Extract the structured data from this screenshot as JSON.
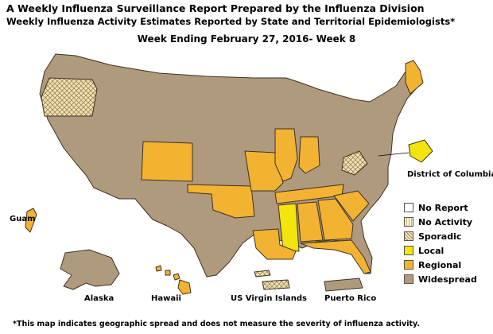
{
  "title_line1": "A Weekly Influenza Surveillance Report Prepared by the Influenza Division",
  "title_line2": "Weekly Influenza Activity Estimates Reported by State and Territorial Epidemiologists*",
  "week_label": "Week Ending February 27, 2016- Week 8",
  "colors": {
    "no_report": "#ffffff",
    "no_activity": "#fff3d6",
    "sporadic": "#f2e3b5",
    "local": "#f2e40c",
    "regional": "#f2b232",
    "widespread": "#b09a7e",
    "border": "#3d3322"
  },
  "legend": [
    {
      "label": "No Report",
      "level": "no_report"
    },
    {
      "label": "No Activity",
      "level": "no_activity"
    },
    {
      "label": "Sporadic",
      "level": "sporadic"
    },
    {
      "label": "Local",
      "level": "local"
    },
    {
      "label": "Regional",
      "level": "regional"
    },
    {
      "label": "Widespread",
      "level": "widespread"
    }
  ],
  "labels": {
    "dc": "District of Columbia",
    "guam": "Guam",
    "alaska": "Alaska",
    "hawaii": "Hawaii",
    "usvi": "US Virgin Islands",
    "puerto_rico": "Puerto Rico"
  },
  "activity": {
    "oregon": "sporadic",
    "colorado": "regional",
    "oklahoma": "regional",
    "missouri": "regional",
    "illinois": "regional",
    "indiana": "regional",
    "tennessee": "regional",
    "alabama": "regional",
    "georgia": "regional",
    "florida": "regional",
    "south_carolina": "regional",
    "louisiana": "regional",
    "maine": "regional",
    "mississippi": "local",
    "dc": "local",
    "west_virginia": "sporadic",
    "guam": "regional",
    "hawaii": "regional",
    "usvi": "sporadic",
    "default": "widespread"
  },
  "footnote": "*This map indicates geographic spread and does not measure the severity of influenza activity."
}
